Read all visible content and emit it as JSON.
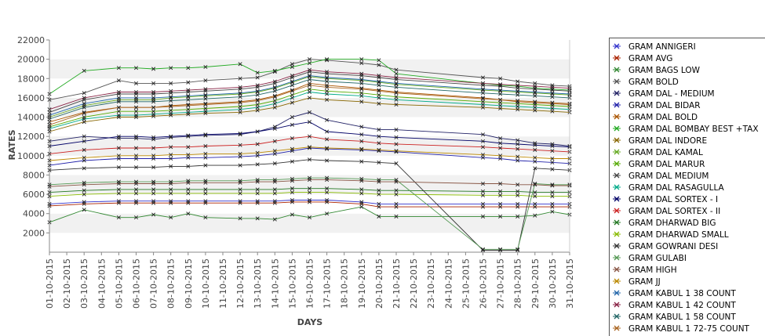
{
  "chart_data": {
    "type": "line",
    "title": "",
    "xlabel": "DAYS",
    "ylabel": "RATES",
    "ylim": [
      0,
      22000
    ],
    "yticks": [
      2000,
      4000,
      6000,
      8000,
      10000,
      12000,
      14000,
      16000,
      18000,
      20000,
      22000
    ],
    "grid": "alternating horizontal bands",
    "legend_position": "right",
    "categories": [
      "01-10-2015",
      "02-10-2015",
      "03-10-2015",
      "04-10-2015",
      "05-10-2015",
      "06-10-2015",
      "07-10-2015",
      "08-10-2015",
      "09-10-2015",
      "10-10-2015",
      "11-10-2015",
      "12-10-2015",
      "13-10-2015",
      "14-10-2015",
      "15-10-2015",
      "16-10-2015",
      "17-10-2015",
      "18-10-2015",
      "19-10-2015",
      "20-10-2015",
      "21-10-2015",
      "22-10-2015",
      "23-10-2015",
      "24-10-2015",
      "25-10-2015",
      "26-10-2015",
      "27-10-2015",
      "28-10-2015",
      "29-10-2015",
      "30-10-2015",
      "31-10-2015"
    ],
    "series": [
      {
        "name": "GRAM ANNIGERI",
        "color": "#3333cc",
        "values": [
          5000,
          null,
          5200,
          null,
          5300,
          5300,
          5300,
          5300,
          5300,
          5300,
          null,
          5300,
          5300,
          5300,
          5400,
          5400,
          5400,
          null,
          5200,
          5000,
          5000,
          null,
          null,
          null,
          null,
          5000,
          5000,
          5000,
          5000,
          5000,
          5000
        ]
      },
      {
        "name": "GRAM AVG",
        "color": "#aa2200",
        "values": [
          4800,
          null,
          5000,
          null,
          5100,
          5100,
          5100,
          5100,
          5100,
          5100,
          null,
          5100,
          5100,
          5100,
          5200,
          5200,
          5200,
          null,
          5000,
          4700,
          4700,
          null,
          null,
          null,
          null,
          4700,
          4700,
          4700,
          4700,
          4700,
          4700
        ]
      },
      {
        "name": "GRAM BAGS LOW",
        "color": "#338833",
        "values": [
          3100,
          null,
          4400,
          null,
          3600,
          3600,
          3900,
          3600,
          4000,
          3600,
          null,
          3500,
          3500,
          3400,
          3900,
          3600,
          4000,
          null,
          4700,
          3700,
          3700,
          null,
          null,
          null,
          null,
          3700,
          3700,
          3700,
          3800,
          4200,
          3900
        ]
      },
      {
        "name": "GRAM BOLD",
        "color": "#555555",
        "values": [
          15800,
          null,
          16500,
          null,
          17800,
          17500,
          17500,
          17500,
          17600,
          17800,
          null,
          18000,
          18100,
          18700,
          19500,
          20000,
          19900,
          null,
          19600,
          19400,
          18900,
          null,
          null,
          null,
          null,
          18100,
          18000,
          17700,
          17500,
          17300,
          17200
        ]
      },
      {
        "name": "GRAM DAL - MEDIUM",
        "color": "#222266",
        "values": [
          11500,
          null,
          12000,
          null,
          11800,
          11800,
          11700,
          11900,
          12000,
          12100,
          null,
          12200,
          12500,
          13000,
          14000,
          14500,
          13700,
          null,
          13000,
          12700,
          12700,
          null,
          null,
          null,
          null,
          12200,
          11800,
          11600,
          11300,
          11200,
          11000
        ]
      },
      {
        "name": "GRAM DAL BIDAR",
        "color": "#2222aa",
        "values": [
          9000,
          null,
          9500,
          null,
          9700,
          9700,
          9700,
          9700,
          9800,
          9800,
          null,
          9900,
          10000,
          10200,
          10500,
          10800,
          10700,
          null,
          10600,
          10500,
          10400,
          null,
          null,
          null,
          null,
          9800,
          9700,
          9500,
          9400,
          9300,
          9200
        ]
      },
      {
        "name": "GRAM DAL BOLD",
        "color": "#aa5500",
        "values": [
          13500,
          null,
          14500,
          null,
          15000,
          15000,
          15000,
          15200,
          15300,
          15400,
          null,
          15600,
          15800,
          16200,
          16800,
          17500,
          17300,
          null,
          17000,
          16800,
          16600,
          null,
          null,
          null,
          null,
          16000,
          15800,
          15600,
          15500,
          15400,
          15300
        ]
      },
      {
        "name": "GRAM DAL BOMBAY BEST +TAX",
        "color": "#22aa22",
        "values": [
          16400,
          null,
          18800,
          null,
          19100,
          19100,
          19000,
          19100,
          19100,
          19200,
          null,
          19500,
          18600,
          18800,
          19200,
          19600,
          20000,
          null,
          20000,
          19900,
          18500,
          null,
          null,
          null,
          null,
          17500,
          17300,
          17200,
          17000,
          16900,
          16800
        ]
      },
      {
        "name": "GRAM DAL INDORE",
        "color": "#886600",
        "values": [
          12500,
          null,
          13500,
          null,
          14000,
          14000,
          14100,
          14200,
          14300,
          14400,
          null,
          14500,
          14700,
          15000,
          15500,
          16000,
          15800,
          null,
          15600,
          15400,
          15300,
          null,
          null,
          null,
          null,
          15000,
          14900,
          14800,
          14700,
          14600,
          14500
        ]
      },
      {
        "name": "GRAM DAL KAMAL",
        "color": "#66aa22",
        "values": [
          14000,
          null,
          15200,
          null,
          15800,
          15800,
          15800,
          16000,
          16100,
          16200,
          null,
          16400,
          16600,
          17000,
          17600,
          18200,
          18000,
          null,
          17800,
          17600,
          17400,
          null,
          null,
          null,
          null,
          16800,
          16700,
          16600,
          16500,
          16400,
          16300
        ]
      },
      {
        "name": "GRAM DAL MARUR",
        "color": "#55aa00",
        "values": [
          13000,
          null,
          14000,
          null,
          14600,
          14600,
          14600,
          14700,
          14800,
          14900,
          null,
          15100,
          15300,
          15700,
          16300,
          16900,
          16700,
          null,
          16500,
          16300,
          16100,
          null,
          null,
          null,
          null,
          15600,
          15500,
          15400,
          15300,
          15200,
          15100
        ]
      },
      {
        "name": "GRAM DAL MEDIUM",
        "color": "#444444",
        "values": [
          14500,
          null,
          15800,
          null,
          16400,
          16400,
          16400,
          16500,
          16600,
          16700,
          null,
          16900,
          17100,
          17500,
          18100,
          18700,
          18500,
          null,
          18300,
          18100,
          17900,
          null,
          null,
          null,
          null,
          17300,
          17200,
          17000,
          16900,
          16800,
          16700
        ]
      },
      {
        "name": "GRAM DAL RASAGULLA",
        "color": "#00aa88",
        "values": [
          12800,
          null,
          13800,
          null,
          14200,
          14200,
          14300,
          14400,
          14500,
          14600,
          null,
          14800,
          15000,
          15400,
          16000,
          16600,
          16400,
          null,
          16200,
          16000,
          15800,
          null,
          null,
          null,
          null,
          15300,
          15200,
          15100,
          15000,
          14900,
          14800
        ]
      },
      {
        "name": "GRAM DAL SORTEX - I",
        "color": "#000066",
        "values": [
          11000,
          null,
          11500,
          null,
          12000,
          12000,
          11900,
          12000,
          12100,
          12200,
          null,
          12300,
          12500,
          12800,
          13200,
          13500,
          12500,
          null,
          12200,
          12000,
          11900,
          null,
          null,
          null,
          null,
          11500,
          11300,
          11200,
          11100,
          11000,
          10900
        ]
      },
      {
        "name": "GRAM DAL SORTEX - II",
        "color": "#cc2222",
        "values": [
          10200,
          null,
          10600,
          null,
          10800,
          10800,
          10800,
          10900,
          10900,
          11000,
          null,
          11100,
          11200,
          11500,
          11800,
          12000,
          11700,
          null,
          11500,
          11300,
          11200,
          null,
          null,
          null,
          null,
          10900,
          10800,
          10700,
          10600,
          10500,
          10400
        ]
      },
      {
        "name": "GRAM DHARWAD BIG",
        "color": "#227722",
        "values": [
          6200,
          null,
          6400,
          null,
          6500,
          6500,
          6500,
          6500,
          6500,
          6500,
          null,
          6500,
          6500,
          6500,
          6600,
          6600,
          6600,
          null,
          6500,
          6400,
          6400,
          null,
          null,
          null,
          null,
          6300,
          6300,
          6300,
          6200,
          6200,
          6200
        ]
      },
      {
        "name": "GRAM DHARWAD SMALL",
        "color": "#88bb00",
        "values": [
          5800,
          null,
          6000,
          null,
          6100,
          6100,
          6100,
          6100,
          6100,
          6100,
          null,
          6100,
          6100,
          6100,
          6200,
          6200,
          6200,
          null,
          6100,
          6000,
          6000,
          null,
          null,
          null,
          null,
          5900,
          5900,
          5900,
          5800,
          5800,
          5800
        ]
      },
      {
        "name": "GRAM GOWRANI DESI",
        "color": "#333333",
        "values": [
          8500,
          null,
          8700,
          null,
          8800,
          8800,
          8800,
          8900,
          8900,
          9000,
          null,
          9000,
          9100,
          9200,
          9400,
          9600,
          9500,
          null,
          9400,
          9300,
          9200,
          null,
          null,
          null,
          null,
          200,
          200,
          200,
          8700,
          8600,
          8500
        ]
      },
      {
        "name": "GRAM GULABI",
        "color": "#559955",
        "values": [
          7000,
          null,
          7200,
          null,
          7300,
          7300,
          7300,
          7300,
          7400,
          7400,
          null,
          7400,
          7500,
          7500,
          7600,
          7700,
          7700,
          null,
          7600,
          7500,
          7500,
          null,
          null,
          null,
          null,
          300,
          300,
          300,
          7100,
          7000,
          7000
        ]
      },
      {
        "name": "GRAM HIGH",
        "color": "#885544",
        "values": [
          6800,
          null,
          7000,
          null,
          7100,
          7100,
          7100,
          7100,
          7200,
          7200,
          null,
          7200,
          7300,
          7300,
          7400,
          7500,
          7500,
          null,
          7400,
          7300,
          7300,
          null,
          null,
          null,
          null,
          7100,
          7100,
          7000,
          7000,
          6900,
          6900
        ]
      },
      {
        "name": "GRAM JJ",
        "color": "#bb8800",
        "values": [
          9500,
          null,
          9800,
          null,
          10000,
          10000,
          10000,
          10100,
          10100,
          10200,
          null,
          10200,
          10300,
          10500,
          10700,
          10900,
          10800,
          null,
          10700,
          10600,
          10500,
          null,
          null,
          null,
          null,
          10100,
          10000,
          9900,
          9800,
          9700,
          9700
        ]
      },
      {
        "name": "GRAM KABUL 1 38 COUNT",
        "color": "#2266aa",
        "values": [
          14200,
          null,
          15400,
          null,
          16000,
          16000,
          16000,
          16100,
          16200,
          16300,
          null,
          16500,
          16700,
          17100,
          17700,
          18300,
          18100,
          null,
          17900,
          17700,
          17500,
          null,
          null,
          null,
          null,
          16900,
          16800,
          16700,
          16600,
          16500,
          16400
        ]
      },
      {
        "name": "GRAM KABUL 1 42 COUNT",
        "color": "#882244",
        "values": [
          14800,
          null,
          16000,
          null,
          16600,
          16600,
          16600,
          16700,
          16800,
          16900,
          null,
          17100,
          17300,
          17700,
          18300,
          18900,
          18700,
          null,
          18500,
          18300,
          18100,
          null,
          null,
          null,
          null,
          17500,
          17400,
          17300,
          17200,
          17100,
          17000
        ]
      },
      {
        "name": "GRAM KABUL 1 58 COUNT",
        "color": "#226666",
        "values": [
          13800,
          null,
          15000,
          null,
          15600,
          15600,
          15600,
          15700,
          15800,
          15900,
          null,
          16100,
          16300,
          16700,
          17300,
          17900,
          17700,
          null,
          17500,
          17300,
          17100,
          null,
          null,
          null,
          null,
          16500,
          16400,
          16300,
          16200,
          16100,
          16000
        ]
      },
      {
        "name": "GRAM KABUL 1 72-75 COUNT",
        "color": "#aa6622",
        "values": [
          13200,
          null,
          14400,
          null,
          15000,
          15000,
          15000,
          15100,
          15200,
          15300,
          null,
          15500,
          15700,
          16100,
          16700,
          17300,
          17100,
          null,
          16900,
          16700,
          16500,
          null,
          null,
          null,
          null,
          15900,
          15800,
          15700,
          15600,
          15500,
          15400
        ]
      }
    ]
  }
}
